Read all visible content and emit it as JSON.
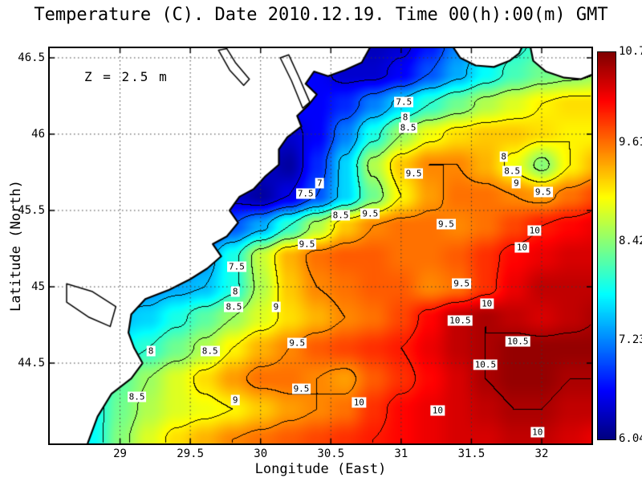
{
  "title": "Temperature (C). Date 2010.12.19. Time 00(h):00(m) GMT",
  "chart_data": {
    "type": "heatmap",
    "subtype": "filled-contour-map",
    "title": "Temperature (C). Date 2010.12.19. Time 00(h):00(m) GMT",
    "date": "2010.12.19",
    "time": "00(h):00(m) GMT",
    "depth_label": "Z = 2.5 m",
    "xlabel": "Longitude (East)",
    "ylabel": "Latitude (North)",
    "xlim": [
      28.5,
      32.354
    ],
    "ylim": [
      43.974,
      46.563
    ],
    "grid_on": true,
    "x_ticks": [
      {
        "label": "29",
        "value": 29
      },
      {
        "label": "29.5",
        "value": 29.5
      },
      {
        "label": "30",
        "value": 30
      },
      {
        "label": "30.5",
        "value": 30.5
      },
      {
        "label": "31",
        "value": 31
      },
      {
        "label": "31.5",
        "value": 31.5
      },
      {
        "label": "32",
        "value": 32
      }
    ],
    "y_ticks": [
      {
        "label": "46.5",
        "value": 46.5
      },
      {
        "label": "46",
        "value": 46
      },
      {
        "label": "45.5",
        "value": 45.5
      },
      {
        "label": "45",
        "value": 45
      },
      {
        "label": "44.5",
        "value": 44.5
      }
    ],
    "colorbar": {
      "vmin": 6.04,
      "vmax": 10.7,
      "colormap": "jet",
      "ticks": [
        {
          "label": "10.7",
          "value": 10.7
        },
        {
          "label": "9.61",
          "value": 9.61
        },
        {
          "label": "8.42",
          "value": 8.42
        },
        {
          "label": "7.23",
          "value": 7.23
        },
        {
          "label": "6.04",
          "value": 6.04
        }
      ]
    },
    "contour_interval": 0.5,
    "contour_levels": [
      6.5,
      7,
      7.5,
      8,
      8.5,
      9,
      9.5,
      10,
      10.5
    ],
    "land_color": "#ffffff",
    "coast_color": "#000000",
    "field": {
      "units": "degC",
      "lon_start": 28.6,
      "lon_step": 0.2,
      "nlon": 20,
      "lat_start": 46.6,
      "lat_step": -0.2,
      "nlat": 14,
      "values": [
        [
          7.0,
          7.0,
          7.0,
          7.0,
          7.0,
          7.0,
          7.0,
          7.0,
          7.0,
          6.8,
          6.4,
          6.3,
          6.4,
          6.7,
          7.2,
          7.6,
          7.9,
          8.1,
          8.2,
          8.3
        ],
        [
          6.9,
          6.9,
          6.9,
          6.9,
          6.9,
          6.9,
          6.9,
          6.9,
          6.8,
          6.6,
          6.4,
          6.4,
          6.6,
          7.0,
          7.4,
          7.8,
          8.1,
          8.3,
          8.4,
          8.5
        ],
        [
          6.8,
          6.8,
          6.8,
          6.8,
          6.8,
          6.8,
          6.8,
          6.8,
          6.7,
          6.6,
          6.8,
          7.2,
          7.6,
          8.0,
          8.3,
          8.6,
          8.8,
          9.0,
          9.1,
          9.1
        ],
        [
          6.7,
          6.7,
          6.7,
          6.7,
          6.7,
          6.7,
          6.7,
          6.5,
          6.4,
          6.6,
          7.2,
          7.9,
          8.5,
          8.9,
          9.1,
          9.2,
          9.2,
          9.1,
          9.0,
          9.0
        ],
        [
          6.6,
          6.6,
          6.6,
          6.6,
          6.6,
          6.6,
          6.6,
          6.4,
          6.2,
          6.8,
          7.6,
          8.6,
          9.2,
          9.5,
          9.5,
          9.3,
          8.9,
          8.4,
          9.0,
          9.3
        ],
        [
          6.5,
          6.5,
          6.5,
          6.5,
          6.5,
          6.5,
          6.4,
          6.2,
          6.5,
          7.0,
          7.6,
          8.3,
          9.0,
          9.4,
          9.6,
          9.6,
          9.5,
          9.4,
          9.6,
          9.8
        ],
        [
          6.8,
          6.8,
          6.8,
          6.8,
          6.8,
          6.8,
          7.0,
          7.4,
          8.0,
          8.6,
          9.2,
          9.5,
          9.6,
          9.6,
          9.5,
          9.6,
          9.8,
          10.0,
          10.1,
          10.2
        ],
        [
          7.0,
          7.0,
          7.0,
          7.0,
          7.0,
          7.3,
          7.9,
          8.7,
          9.3,
          9.6,
          9.7,
          9.7,
          9.6,
          9.6,
          9.7,
          9.9,
          10.1,
          10.2,
          10.3,
          10.3
        ],
        [
          7.3,
          7.3,
          7.3,
          7.3,
          7.4,
          7.5,
          7.9,
          8.6,
          9.2,
          9.5,
          9.6,
          9.7,
          9.7,
          9.5,
          9.6,
          9.9,
          10.2,
          10.4,
          10.4,
          10.4
        ],
        [
          7.5,
          7.5,
          7.5,
          7.6,
          7.9,
          8.2,
          8.5,
          8.8,
          9.1,
          9.3,
          9.5,
          9.6,
          9.8,
          10.1,
          10.4,
          10.5,
          10.4,
          10.3,
          10.4,
          10.5
        ],
        [
          7.6,
          7.7,
          7.8,
          8.0,
          8.3,
          8.6,
          9.0,
          9.3,
          9.5,
          9.7,
          9.8,
          9.9,
          10.0,
          10.2,
          10.4,
          10.5,
          10.6,
          10.6,
          10.6,
          10.6
        ],
        [
          7.5,
          7.8,
          8.2,
          8.5,
          8.8,
          9.1,
          9.4,
          9.6,
          9.6,
          9.5,
          9.4,
          9.7,
          9.9,
          10.1,
          10.3,
          10.5,
          10.6,
          10.6,
          10.5,
          10.5
        ],
        [
          7.4,
          7.8,
          8.3,
          8.6,
          8.8,
          8.9,
          9.0,
          9.2,
          9.4,
          9.5,
          9.6,
          9.9,
          10.1,
          10.2,
          10.3,
          10.4,
          10.5,
          10.5,
          10.4,
          10.4
        ],
        [
          7.3,
          7.8,
          8.4,
          8.8,
          9.1,
          9.3,
          9.5,
          9.6,
          9.7,
          9.8,
          9.9,
          10.0,
          10.1,
          10.2,
          10.3,
          10.3,
          10.4,
          10.4,
          10.3,
          10.2
        ]
      ]
    },
    "contour_labels": [
      {
        "t": "7.5",
        "lon": 31.02,
        "lat": 46.21
      },
      {
        "t": "8",
        "lon": 31.03,
        "lat": 46.11
      },
      {
        "t": "8.5",
        "lon": 31.05,
        "lat": 46.04
      },
      {
        "t": "8",
        "lon": 31.73,
        "lat": 45.85
      },
      {
        "t": "8.5",
        "lon": 31.79,
        "lat": 45.76
      },
      {
        "t": "9",
        "lon": 31.82,
        "lat": 45.68
      },
      {
        "t": "9.5",
        "lon": 32.01,
        "lat": 45.62
      },
      {
        "t": "9.5",
        "lon": 31.09,
        "lat": 45.74
      },
      {
        "t": "7",
        "lon": 30.42,
        "lat": 45.68
      },
      {
        "t": "7.5",
        "lon": 30.32,
        "lat": 45.61
      },
      {
        "t": "8.5",
        "lon": 30.57,
        "lat": 45.47
      },
      {
        "t": "9.5",
        "lon": 30.78,
        "lat": 45.48
      },
      {
        "t": "9.5",
        "lon": 31.32,
        "lat": 45.41
      },
      {
        "t": "10",
        "lon": 31.95,
        "lat": 45.37
      },
      {
        "t": "10",
        "lon": 31.86,
        "lat": 45.26
      },
      {
        "t": "9.5",
        "lon": 30.33,
        "lat": 45.28
      },
      {
        "t": "9.5",
        "lon": 31.43,
        "lat": 45.02
      },
      {
        "t": "7.5",
        "lon": 29.83,
        "lat": 45.13
      },
      {
        "t": "8",
        "lon": 29.82,
        "lat": 44.97
      },
      {
        "t": "8.5",
        "lon": 29.81,
        "lat": 44.87
      },
      {
        "t": "9",
        "lon": 30.11,
        "lat": 44.87
      },
      {
        "t": "10",
        "lon": 31.61,
        "lat": 44.89
      },
      {
        "t": "10.5",
        "lon": 31.42,
        "lat": 44.78
      },
      {
        "t": "10.5",
        "lon": 31.83,
        "lat": 44.64
      },
      {
        "t": "10.5",
        "lon": 31.6,
        "lat": 44.49
      },
      {
        "t": "8",
        "lon": 29.22,
        "lat": 44.58
      },
      {
        "t": "8.5",
        "lon": 29.64,
        "lat": 44.58
      },
      {
        "t": "9.5",
        "lon": 30.26,
        "lat": 44.63
      },
      {
        "t": "9.5",
        "lon": 30.29,
        "lat": 44.33
      },
      {
        "t": "8.5",
        "lon": 29.12,
        "lat": 44.28
      },
      {
        "t": "9",
        "lon": 29.82,
        "lat": 44.26
      },
      {
        "t": "10",
        "lon": 30.7,
        "lat": 44.24
      },
      {
        "t": "10",
        "lon": 31.26,
        "lat": 44.19
      },
      {
        "t": "10",
        "lon": 31.97,
        "lat": 44.05
      }
    ],
    "coastline": [
      [
        30.78,
        46.57
      ],
      [
        30.72,
        46.47
      ],
      [
        30.6,
        46.42
      ],
      [
        30.48,
        46.38
      ],
      [
        30.38,
        46.41
      ],
      [
        30.32,
        46.33
      ],
      [
        30.4,
        46.26
      ],
      [
        30.34,
        46.19
      ],
      [
        30.26,
        46.12
      ],
      [
        30.29,
        46.05
      ],
      [
        30.19,
        45.98
      ],
      [
        30.13,
        45.9
      ],
      [
        30.13,
        45.8
      ],
      [
        30.03,
        45.72
      ],
      [
        29.95,
        45.64
      ],
      [
        29.85,
        45.59
      ],
      [
        29.78,
        45.5
      ],
      [
        29.84,
        45.42
      ],
      [
        29.76,
        45.33
      ],
      [
        29.66,
        45.28
      ],
      [
        29.72,
        45.2
      ],
      [
        29.62,
        45.12
      ],
      [
        29.5,
        45.05
      ],
      [
        29.35,
        44.98
      ],
      [
        29.18,
        44.92
      ],
      [
        29.08,
        44.82
      ],
      [
        29.06,
        44.7
      ],
      [
        29.1,
        44.6
      ],
      [
        29.16,
        44.5
      ],
      [
        29.08,
        44.4
      ],
      [
        28.94,
        44.3
      ],
      [
        28.84,
        44.15
      ],
      [
        28.76,
        43.95
      ],
      [
        28.49,
        43.95
      ],
      [
        28.49,
        46.57
      ]
    ],
    "islands": [
      [
        [
          31.37,
          46.57
        ],
        [
          31.42,
          46.5
        ],
        [
          31.53,
          46.45
        ],
        [
          31.66,
          46.44
        ],
        [
          31.77,
          46.48
        ],
        [
          31.84,
          46.53
        ],
        [
          31.86,
          46.57
        ]
      ],
      [
        [
          31.92,
          46.57
        ],
        [
          31.94,
          46.48
        ],
        [
          32.03,
          46.41
        ],
        [
          32.16,
          46.37
        ],
        [
          32.28,
          46.36
        ],
        [
          32.36,
          46.39
        ],
        [
          32.36,
          46.57
        ]
      ]
    ],
    "lagoons": [
      [
        [
          28.62,
          45.02
        ],
        [
          28.8,
          44.97
        ],
        [
          28.97,
          44.87
        ],
        [
          28.93,
          44.74
        ],
        [
          28.78,
          44.8
        ],
        [
          28.62,
          44.9
        ]
      ]
    ],
    "estuaries": [
      [
        [
          30.14,
          46.5
        ],
        [
          30.22,
          46.35
        ],
        [
          30.3,
          46.17
        ],
        [
          30.35,
          46.21
        ],
        [
          30.27,
          46.38
        ],
        [
          30.2,
          46.52
        ]
      ],
      [
        [
          29.7,
          46.55
        ],
        [
          29.78,
          46.42
        ],
        [
          29.88,
          46.32
        ],
        [
          29.92,
          46.36
        ],
        [
          29.82,
          46.47
        ],
        [
          29.76,
          46.56
        ]
      ]
    ]
  }
}
